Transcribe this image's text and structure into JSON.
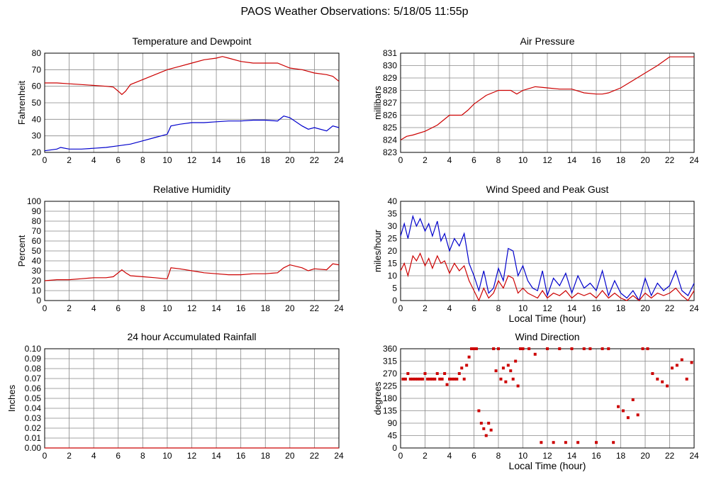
{
  "title": "PAOS Weather Observations: 5/18/05 11:55p",
  "colors": {
    "red": "#cc0000",
    "blue": "#0000cc",
    "grid": "#888888",
    "frame": "#000000"
  },
  "chart_data": [
    {
      "id": "temp",
      "type": "line",
      "title": "Temperature and Dewpoint",
      "xlabel": "",
      "ylabel": "Fahrenheit",
      "xlim": [
        0,
        24
      ],
      "ylim": [
        20,
        80
      ],
      "xticks": [
        0,
        2,
        4,
        6,
        8,
        10,
        12,
        14,
        16,
        18,
        20,
        22,
        24
      ],
      "yticks": [
        20,
        30,
        40,
        50,
        60,
        70,
        80
      ],
      "grid": true,
      "series": [
        {
          "color": "red",
          "x": [
            0,
            1,
            2,
            3,
            4,
            5,
            5.6,
            6,
            6.3,
            6.6,
            7,
            8,
            9,
            10,
            11,
            12,
            13,
            14,
            14.5,
            15,
            16,
            17,
            18,
            19,
            20,
            21,
            22,
            23,
            23.5,
            24
          ],
          "y": [
            62,
            62,
            61.5,
            61,
            60.5,
            60,
            59.5,
            57,
            55,
            57,
            61,
            64,
            67,
            70,
            72,
            74,
            76,
            77,
            78,
            77,
            75,
            74,
            74,
            74,
            71,
            70,
            68,
            67,
            66,
            63
          ]
        },
        {
          "color": "blue",
          "x": [
            0,
            1,
            1.3,
            2,
            3,
            4,
            5,
            6,
            7,
            8,
            9,
            9.5,
            10,
            10.3,
            11,
            12,
            13,
            14,
            15,
            16,
            17,
            18,
            19,
            19.5,
            20,
            21,
            21.5,
            22,
            23,
            23.5,
            24
          ],
          "y": [
            21,
            22,
            23,
            22,
            22,
            22.5,
            23,
            24,
            25,
            27,
            29,
            30,
            31,
            36,
            37,
            38,
            38,
            38.5,
            39,
            39,
            39.5,
            39.5,
            39,
            42,
            41,
            36,
            34,
            35,
            33,
            36,
            35
          ]
        }
      ]
    },
    {
      "id": "pressure",
      "type": "line",
      "title": "Air Pressure",
      "xlabel": "",
      "ylabel": "millibars",
      "xlim": [
        0,
        24
      ],
      "ylim": [
        823,
        831
      ],
      "xticks": [
        0,
        2,
        4,
        6,
        8,
        10,
        12,
        14,
        16,
        18,
        20,
        22,
        24
      ],
      "yticks": [
        823,
        824,
        825,
        826,
        827,
        828,
        829,
        830,
        831
      ],
      "grid": true,
      "series": [
        {
          "color": "red",
          "x": [
            0,
            0.5,
            1,
            2,
            3,
            3.5,
            4,
            5,
            5.5,
            6,
            7,
            8,
            9,
            9.5,
            10,
            11,
            12,
            13,
            14,
            15,
            16,
            16.5,
            17,
            18,
            19,
            20,
            21,
            22,
            22.5,
            24
          ],
          "y": [
            824,
            824.3,
            824.4,
            824.7,
            825.2,
            825.6,
            826,
            826,
            826.4,
            826.9,
            827.6,
            828,
            828,
            827.7,
            828,
            828.3,
            828.2,
            828.1,
            828.1,
            827.8,
            827.7,
            827.7,
            827.8,
            828.2,
            828.8,
            829.4,
            830,
            830.7,
            830.7,
            830.7
          ]
        }
      ]
    },
    {
      "id": "humidity",
      "type": "line",
      "title": "Relative Humidity",
      "xlabel": "",
      "ylabel": "Percent",
      "xlim": [
        0,
        24
      ],
      "ylim": [
        0,
        100
      ],
      "xticks": [
        0,
        2,
        4,
        6,
        8,
        10,
        12,
        14,
        16,
        18,
        20,
        22,
        24
      ],
      "yticks": [
        0,
        10,
        20,
        30,
        40,
        50,
        60,
        70,
        80,
        90,
        100
      ],
      "grid": true,
      "series": [
        {
          "color": "red",
          "x": [
            0,
            1,
            2,
            3,
            4,
            5,
            5.6,
            6,
            6.3,
            6.6,
            7,
            8,
            9,
            9.8,
            10,
            10.3,
            11,
            12,
            13,
            14,
            15,
            16,
            17,
            18,
            19,
            19.5,
            20,
            21,
            21.5,
            22,
            23,
            23.5,
            24
          ],
          "y": [
            20,
            21,
            21,
            22,
            23,
            23,
            24,
            28,
            31,
            28,
            25,
            24,
            23,
            22,
            22,
            33,
            32,
            30,
            28,
            27,
            26,
            26,
            27,
            27,
            28,
            33,
            36,
            33,
            30,
            32,
            31,
            37,
            36
          ]
        }
      ]
    },
    {
      "id": "wind",
      "type": "line",
      "title": "Wind Speed and Peak Gust",
      "xlabel": "Local Time (hour)",
      "ylabel": "miles/hour",
      "xlim": [
        0,
        24
      ],
      "ylim": [
        0,
        40
      ],
      "xticks": [
        0,
        2,
        4,
        6,
        8,
        10,
        12,
        14,
        16,
        18,
        20,
        22,
        24
      ],
      "yticks": [
        0,
        5,
        10,
        15,
        20,
        25,
        30,
        35,
        40
      ],
      "grid": true,
      "series": [
        {
          "color": "blue",
          "x": [
            0,
            0.3,
            0.6,
            1,
            1.3,
            1.6,
            2,
            2.3,
            2.6,
            3,
            3.3,
            3.6,
            4,
            4.4,
            4.8,
            5.2,
            5.6,
            6,
            6.4,
            6.8,
            7.2,
            7.6,
            8,
            8.4,
            8.8,
            9.2,
            9.6,
            10,
            10.4,
            10.8,
            11.2,
            11.6,
            12,
            12.5,
            13,
            13.5,
            14,
            14.5,
            15,
            15.5,
            16,
            16.5,
            17,
            17.5,
            18,
            18.5,
            19,
            19.5,
            20,
            20.5,
            21,
            21.5,
            22,
            22.5,
            23,
            23.5,
            24
          ],
          "y": [
            26,
            31,
            25,
            34,
            30,
            33,
            28,
            31,
            26,
            32,
            24,
            27,
            20,
            25,
            22,
            27,
            15,
            10,
            4,
            12,
            3,
            5,
            13,
            8,
            21,
            20,
            10,
            14,
            8,
            5,
            4,
            12,
            2,
            9,
            6,
            11,
            3,
            10,
            5,
            7,
            4,
            12,
            2,
            8,
            3,
            1,
            4,
            0,
            9,
            2,
            7,
            4,
            6,
            12,
            4,
            2,
            7
          ]
        },
        {
          "color": "red",
          "x": [
            0,
            0.3,
            0.6,
            1,
            1.3,
            1.6,
            2,
            2.3,
            2.6,
            3,
            3.3,
            3.6,
            4,
            4.4,
            4.8,
            5.2,
            5.6,
            6,
            6.4,
            6.8,
            7.2,
            7.6,
            8,
            8.4,
            8.8,
            9.2,
            9.6,
            10,
            10.4,
            10.8,
            11.2,
            11.6,
            12,
            12.5,
            13,
            13.5,
            14,
            14.5,
            15,
            15.5,
            16,
            16.5,
            17,
            17.5,
            18,
            18.5,
            19,
            19.5,
            20,
            20.5,
            21,
            21.5,
            22,
            22.5,
            23,
            23.5,
            24
          ],
          "y": [
            12,
            15,
            10,
            18,
            16,
            19,
            14,
            17,
            13,
            18,
            15,
            16,
            11,
            15,
            12,
            14,
            8,
            4,
            0,
            5,
            1,
            3,
            8,
            5,
            10,
            9,
            3,
            5,
            3,
            2,
            1,
            4,
            1,
            3,
            2,
            4,
            1,
            3,
            2,
            3,
            1,
            4,
            1,
            3,
            1,
            0,
            2,
            0,
            3,
            1,
            3,
            2,
            3,
            5,
            2,
            0,
            4
          ]
        }
      ]
    },
    {
      "id": "rain",
      "type": "line",
      "title": "24 hour Accumulated Rainfall",
      "xlabel": "",
      "ylabel": "Inches",
      "xlim": [
        0,
        24
      ],
      "ylim": [
        0,
        0.1
      ],
      "xticks": [
        0,
        2,
        4,
        6,
        8,
        10,
        12,
        14,
        16,
        18,
        20,
        22,
        24
      ],
      "yticks": [
        "0.00",
        "0.01",
        "0.02",
        "0.03",
        "0.04",
        "0.05",
        "0.06",
        "0.07",
        "0.08",
        "0.09",
        "0.10"
      ],
      "grid": true,
      "series": [
        {
          "color": "red",
          "x": [
            0,
            24
          ],
          "y": [
            0,
            0
          ]
        }
      ]
    },
    {
      "id": "direction",
      "type": "scatter",
      "title": "Wind Direction",
      "xlabel": "Local Time (hour)",
      "ylabel": "degrees",
      "xlim": [
        0,
        24
      ],
      "ylim": [
        0,
        360
      ],
      "xticks": [
        0,
        2,
        4,
        6,
        8,
        10,
        12,
        14,
        16,
        18,
        20,
        22,
        24
      ],
      "yticks": [
        0,
        45,
        90,
        135,
        180,
        225,
        270,
        315,
        360
      ],
      "grid": true,
      "series": [
        {
          "color": "red",
          "x": [
            0.2,
            0.4,
            0.6,
            0.8,
            1.0,
            1.2,
            1.4,
            1.6,
            1.8,
            2.0,
            2.2,
            2.4,
            2.6,
            2.8,
            3.0,
            3.2,
            3.4,
            3.6,
            3.8,
            4.0,
            4.2,
            4.4,
            4.6,
            4.8,
            5.0,
            5.2,
            5.4,
            5.6,
            5.8,
            6.0,
            6.2,
            6.4,
            6.6,
            6.8,
            7.0,
            7.2,
            7.4,
            7.6,
            7.8,
            8.0,
            8.2,
            8.4,
            8.6,
            8.8,
            9.0,
            9.2,
            9.4,
            9.6,
            9.8,
            10.0,
            10.5,
            11.0,
            11.5,
            12.0,
            12.5,
            13.0,
            13.5,
            14.0,
            14.5,
            15.0,
            15.5,
            16.0,
            16.5,
            17.0,
            17.4,
            17.8,
            18.2,
            18.6,
            19.0,
            19.4,
            19.8,
            20.2,
            20.6,
            21.0,
            21.4,
            21.8,
            22.2,
            22.6,
            23.0,
            23.4,
            23.8
          ],
          "y": [
            250,
            250,
            270,
            250,
            250,
            250,
            250,
            250,
            250,
            270,
            250,
            250,
            250,
            250,
            270,
            250,
            250,
            270,
            230,
            250,
            250,
            250,
            250,
            270,
            290,
            250,
            300,
            330,
            360,
            370,
            360,
            135,
            90,
            70,
            45,
            90,
            65,
            370,
            280,
            360,
            250,
            290,
            240,
            300,
            280,
            250,
            315,
            225,
            360,
            370,
            360,
            340,
            20,
            370,
            20,
            370,
            20,
            370,
            20,
            370,
            370,
            20,
            360,
            370,
            20,
            150,
            135,
            110,
            175,
            120,
            370,
            360,
            270,
            250,
            240,
            225,
            290,
            300,
            320,
            250,
            310
          ]
        }
      ]
    }
  ]
}
